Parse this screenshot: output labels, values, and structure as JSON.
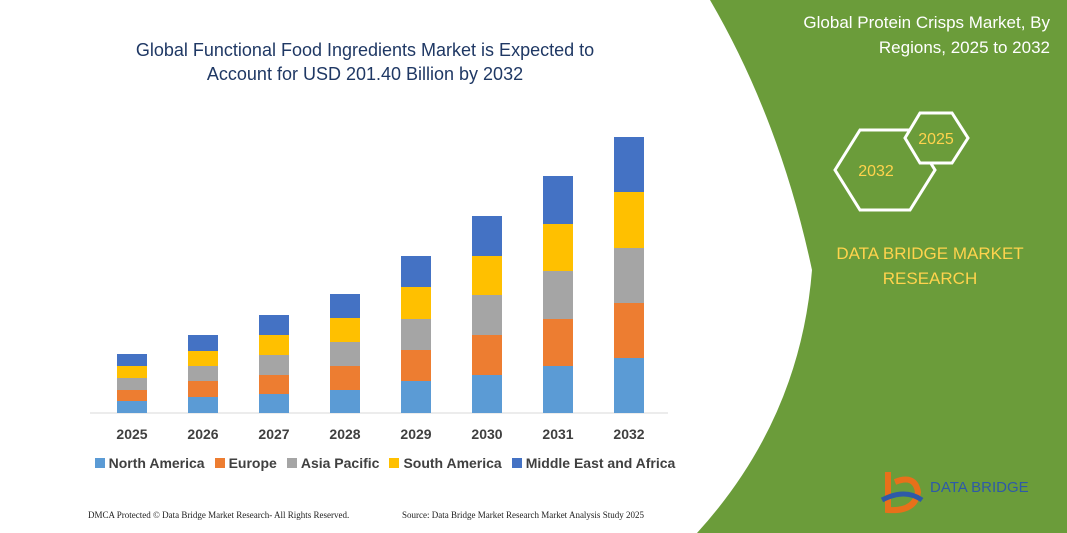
{
  "chart_data": {
    "type": "stacked_bar",
    "title": "Global Functional Food Ingredients Market is Expected to Account for USD 201.40 Billion by 2032",
    "categories": [
      "2025",
      "2026",
      "2027",
      "2028",
      "2029",
      "2030",
      "2031",
      "2032"
    ],
    "series": [
      {
        "name": "North America",
        "color": "#5b9bd5",
        "values": [
          12,
          16,
          19,
          23,
          32,
          38,
          47,
          55
        ]
      },
      {
        "name": "Europe",
        "color": "#ed7d31",
        "values": [
          11,
          16,
          19,
          24,
          31,
          40,
          47,
          55
        ]
      },
      {
        "name": "Asia Pacific",
        "color": "#a5a5a5",
        "values": [
          12,
          15,
          20,
          24,
          31,
          40,
          48,
          55
        ]
      },
      {
        "name": "South America",
        "color": "#ffc000",
        "values": [
          12,
          15,
          20,
          24,
          32,
          39,
          47,
          56
        ]
      },
      {
        "name": "Middle East and Africa",
        "color": "#4472c4",
        "values": [
          12,
          16,
          20,
          24,
          31,
          40,
          48,
          55
        ]
      }
    ]
  },
  "panel": {
    "title": "Global Protein Crisps Market, By Regions, 2025 to 2032",
    "hex_back": "2032",
    "hex_front": "2025",
    "brand": "DATA BRIDGE MARKET RESEARCH"
  },
  "logo": {
    "text": "DATA BRIDGE"
  },
  "footer": {
    "left": "DMCA Protected © Data Bridge Market Research- All Rights Reserved.",
    "right": "Source: Data Bridge Market Research Market Analysis Study 2025"
  }
}
